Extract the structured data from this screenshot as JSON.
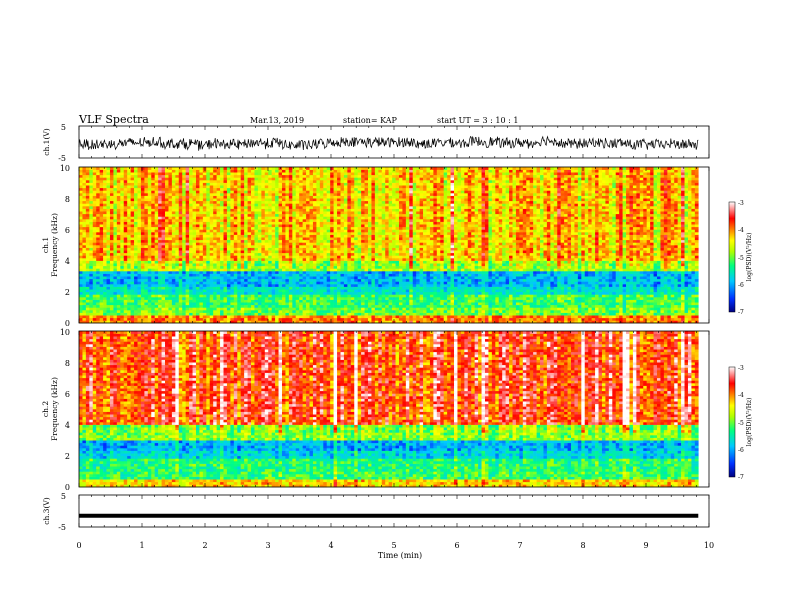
{
  "header": {
    "title": "VLF Spectra",
    "date": "Mar.13, 2019",
    "station": "station= KAP",
    "start": "start  UT =   3  : 10 : 1"
  },
  "colors": {
    "palette": [
      "#0000a0",
      "#0060ff",
      "#00d0ff",
      "#00ff80",
      "#a0ff00",
      "#ffff00",
      "#ff8000",
      "#ff0000",
      "#ffffff"
    ],
    "trace": "#000000"
  },
  "chart_data": [
    {
      "type": "line",
      "panel": "ch1-waveform",
      "ylabel": "ch.1(V)",
      "ylim": [
        -5,
        5
      ],
      "yticks": [
        "5",
        "-5"
      ],
      "x_range_min": [
        0,
        9.83
      ],
      "description_values": "noisy voltage trace fluctuating roughly between -4 and +3 V"
    },
    {
      "type": "heatmap",
      "panel": "ch1-spectrogram",
      "ylabel": "ch.1 Frequency (kHz)",
      "ylabel_line1": "ch.1",
      "ylabel_line2": "Frequency (kHz)",
      "ylim": [
        0,
        10
      ],
      "yticks": [
        "0",
        "2",
        "4",
        "6",
        "8",
        "10"
      ],
      "x_range_min": [
        0,
        9.83
      ],
      "bands": [
        {
          "f_min": 0.0,
          "f_max": 0.5,
          "log_psd": -4.0
        },
        {
          "f_min": 0.5,
          "f_max": 1.0,
          "log_psd": -5.0
        },
        {
          "f_min": 1.0,
          "f_max": 1.8,
          "log_psd": -5.2
        },
        {
          "f_min": 1.8,
          "f_max": 2.4,
          "log_psd": -5.7
        },
        {
          "f_min": 2.4,
          "f_max": 3.3,
          "log_psd": -6.0
        },
        {
          "f_min": 3.3,
          "f_max": 4.0,
          "log_psd": -4.8
        },
        {
          "f_min": 4.0,
          "f_max": 10.0,
          "log_psd": -4.3
        }
      ]
    },
    {
      "type": "heatmap",
      "panel": "ch2-spectrogram",
      "ylabel": "ch.2 Frequency (kHz)",
      "ylabel_line1": "ch.2",
      "ylabel_line2": "Frequency (kHz)",
      "ylim": [
        0,
        10
      ],
      "yticks": [
        "0",
        "2",
        "4",
        "6",
        "8",
        "10"
      ],
      "x_range_min": [
        0,
        9.83
      ],
      "bands": [
        {
          "f_min": 0.0,
          "f_max": 0.5,
          "log_psd": -4.3
        },
        {
          "f_min": 0.5,
          "f_max": 1.0,
          "log_psd": -5.2
        },
        {
          "f_min": 1.0,
          "f_max": 1.8,
          "log_psd": -5.3
        },
        {
          "f_min": 1.8,
          "f_max": 2.4,
          "log_psd": -5.8
        },
        {
          "f_min": 2.4,
          "f_max": 3.0,
          "log_psd": -6.0
        },
        {
          "f_min": 3.0,
          "f_max": 4.0,
          "log_psd": -4.9
        },
        {
          "f_min": 4.0,
          "f_max": 10.0,
          "log_psd": -3.7
        }
      ]
    },
    {
      "type": "line",
      "panel": "ch3-waveform",
      "ylabel": "ch.3(V)",
      "ylim": [
        -5,
        5
      ],
      "yticks": [
        "5",
        "-5"
      ],
      "x_range_min": [
        0,
        9.83
      ],
      "values_constant": -1.5
    }
  ],
  "xaxis": {
    "label": "Time  (min)",
    "range": [
      0,
      10
    ],
    "ticks": [
      "0",
      "1",
      "2",
      "3",
      "4",
      "5",
      "6",
      "7",
      "8",
      "9",
      "10"
    ]
  },
  "colorbars": [
    {
      "label": "log(PSD)(V²/Hz)",
      "range": [
        -7,
        -3
      ],
      "ticks": [
        "-3",
        "-4",
        "-5",
        "-6",
        "-7"
      ]
    },
    {
      "label": "log(PSD)(V²/Hz)",
      "range": [
        -7,
        -3
      ],
      "ticks": [
        "-3",
        "-4",
        "-5",
        "-6",
        "-7"
      ]
    }
  ]
}
